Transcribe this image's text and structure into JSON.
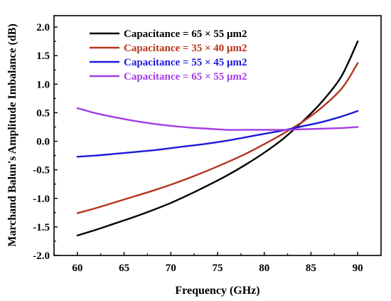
{
  "chart_data": {
    "type": "line",
    "xlabel": "Frequency (GHz)",
    "ylabel": "Marchand Balun's Amplitude Imbalance (dB)",
    "xlim": [
      57.5,
      92.5
    ],
    "ylim": [
      -2.0,
      2.2
    ],
    "xticks": [
      "60",
      "65",
      "70",
      "75",
      "80",
      "85",
      "90"
    ],
    "yticks": [
      "-2.0",
      "-1.5",
      "-1.0",
      "-0.5",
      "0.0",
      "0.5",
      "1.0",
      "1.5",
      "2.0"
    ],
    "legend_position": "top-left",
    "grid": false,
    "series": [
      {
        "name": "Capacitance = 65 × 55 μm2",
        "color": "#000000",
        "x": [
          60,
          62,
          64,
          66,
          68,
          70,
          72,
          74,
          76,
          78,
          80,
          82,
          84,
          86,
          88,
          89,
          90
        ],
        "y": [
          -1.65,
          -1.55,
          -1.44,
          -1.33,
          -1.21,
          -1.08,
          -0.93,
          -0.77,
          -0.6,
          -0.41,
          -0.2,
          0.04,
          0.33,
          0.66,
          1.07,
          1.38,
          1.75
        ]
      },
      {
        "name": "Capacitance = 35 × 40 μm2",
        "color": "#b5351c",
        "x": [
          60,
          62,
          64,
          66,
          68,
          70,
          72,
          74,
          76,
          78,
          80,
          82,
          84,
          86,
          88,
          89,
          90
        ],
        "y": [
          -1.26,
          -1.17,
          -1.07,
          -0.97,
          -0.87,
          -0.76,
          -0.64,
          -0.51,
          -0.37,
          -0.22,
          -0.05,
          0.13,
          0.33,
          0.57,
          0.87,
          1.09,
          1.37
        ]
      },
      {
        "name": "Capacitance = 55 × 45 μm2",
        "color": "#1a1adc",
        "x": [
          60,
          62,
          64,
          66,
          68,
          70,
          72,
          74,
          76,
          78,
          80,
          82,
          84,
          86,
          88,
          90
        ],
        "y": [
          -0.27,
          -0.25,
          -0.22,
          -0.19,
          -0.16,
          -0.12,
          -0.08,
          -0.04,
          0.01,
          0.07,
          0.13,
          0.19,
          0.26,
          0.33,
          0.42,
          0.53
        ]
      },
      {
        "name": "Capacitance = 65 × 55 μm2",
        "color": "#a43ce6",
        "x": [
          60,
          62,
          64,
          66,
          68,
          70,
          72,
          74,
          76,
          78,
          80,
          82,
          84,
          86,
          88,
          90
        ],
        "y": [
          0.58,
          0.49,
          0.42,
          0.36,
          0.31,
          0.27,
          0.24,
          0.22,
          0.2,
          0.2,
          0.2,
          0.2,
          0.21,
          0.22,
          0.23,
          0.25
        ]
      }
    ]
  }
}
